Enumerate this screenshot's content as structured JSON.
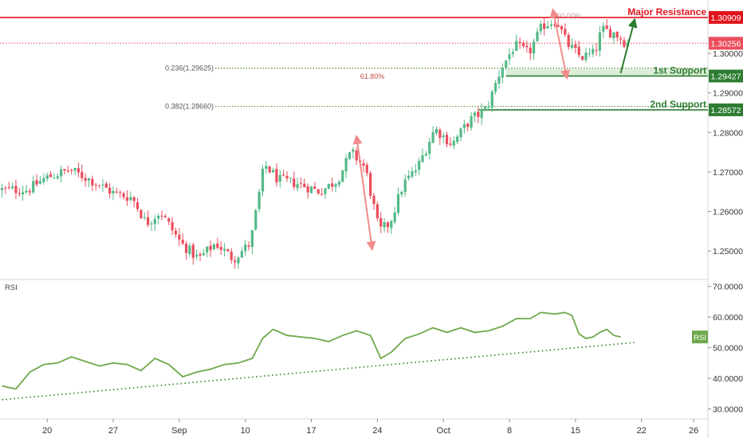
{
  "chart_data": [
    {
      "type": "candlestick",
      "title": "",
      "price_range": [
        1.243,
        1.3135
      ],
      "x_tick_labels": [
        {
          "label": "20",
          "bar": 13
        },
        {
          "label": "27",
          "bar": 32
        },
        {
          "label": "Sep",
          "bar": 51
        },
        {
          "label": "10",
          "bar": 70
        },
        {
          "label": "17",
          "bar": 89
        },
        {
          "label": "24",
          "bar": 108
        },
        {
          "label": "Oct",
          "bar": 127
        },
        {
          "label": "8",
          "bar": 146
        },
        {
          "label": "15",
          "bar": 165
        },
        {
          "label": "22",
          "bar": 184
        },
        {
          "label": "26",
          "bar": 199
        }
      ],
      "y_tick_labels": [
        "1.30000",
        "1.29000",
        "1.28000",
        "1.27000",
        "1.26000",
        "1.25000"
      ],
      "y_tick_values": [
        1.3,
        1.29,
        1.28,
        1.27,
        1.26,
        1.25
      ],
      "colors": {
        "up": "#53b987",
        "down": "#eb4d5c",
        "resistance": "#e0151d",
        "support": "#2e7d32",
        "fib": "#5a8f3c",
        "arrow_red": "#f28b8b"
      },
      "close_path": [
        [
          0,
          1.2655
        ],
        [
          8,
          1.2655
        ],
        [
          13,
          1.2685
        ],
        [
          20,
          1.2705
        ],
        [
          26,
          1.268
        ],
        [
          33,
          1.2645
        ],
        [
          38,
          1.2635
        ],
        [
          42,
          1.257
        ],
        [
          46,
          1.26
        ],
        [
          52,
          1.252
        ],
        [
          57,
          1.248
        ],
        [
          62,
          1.252
        ],
        [
          67,
          1.248
        ],
        [
          72,
          1.252
        ],
        [
          76,
          1.272
        ],
        [
          80,
          1.268
        ],
        [
          86,
          1.267
        ],
        [
          92,
          1.265
        ],
        [
          97,
          1.268
        ],
        [
          101,
          1.275
        ],
        [
          105,
          1.271
        ],
        [
          109,
          1.255
        ],
        [
          112,
          1.257
        ],
        [
          116,
          1.267
        ],
        [
          120,
          1.271
        ],
        [
          125,
          1.281
        ],
        [
          130,
          1.277
        ],
        [
          135,
          1.283
        ],
        [
          140,
          1.286
        ],
        [
          144,
          1.296
        ],
        [
          148,
          1.302
        ],
        [
          152,
          1.3
        ],
        [
          156,
          1.307
        ],
        [
          160,
          1.3085
        ],
        [
          163,
          1.3025
        ],
        [
          167,
          1.299
        ],
        [
          171,
          1.3
        ],
        [
          173,
          1.306
        ],
        [
          177,
          1.305
        ],
        [
          180,
          1.3026
        ]
      ],
      "levels": [
        {
          "id": "major-resistance",
          "label": "Major Resistance",
          "badge": "1.30909",
          "value": 1.30909
        },
        {
          "id": "current-price",
          "badge": "1.30256",
          "value": 1.30256
        },
        {
          "id": "first-support",
          "label": "1st Support",
          "badge": "1.29427",
          "value": 1.29427
        },
        {
          "id": "second-support",
          "label": "2nd Support",
          "badge": "1.28572",
          "value": 1.28572
        }
      ],
      "fib_levels": [
        {
          "label": "0.236(1.29625)",
          "value": 1.29625
        },
        {
          "label": "0.382(1.28660)",
          "value": 1.2866
        }
      ],
      "fib_markers": [
        {
          "label": "61.80%",
          "value": 1.2942
        },
        {
          "label": "100.00%",
          "value": 1.3095
        }
      ]
    },
    {
      "type": "line",
      "name": "RSI",
      "panel_label": "RSI",
      "badge": "RSI",
      "ylim": [
        27.0,
        72.0
      ],
      "y_tick_labels": [
        "70.0000",
        "60.0000",
        "50.0000",
        "40.0000",
        "30.0000"
      ],
      "y_tick_values": [
        70,
        60,
        50,
        40,
        30
      ],
      "color": "#6ea84a",
      "points": [
        [
          0,
          37.5
        ],
        [
          4,
          36.5
        ],
        [
          8,
          42.0
        ],
        [
          12,
          44.5
        ],
        [
          16,
          45.0
        ],
        [
          20,
          47.0
        ],
        [
          24,
          45.5
        ],
        [
          28,
          44.0
        ],
        [
          32,
          45.0
        ],
        [
          36,
          44.5
        ],
        [
          40,
          42.5
        ],
        [
          44,
          46.5
        ],
        [
          48,
          44.5
        ],
        [
          52,
          40.5
        ],
        [
          56,
          42.0
        ],
        [
          60,
          43.0
        ],
        [
          64,
          44.5
        ],
        [
          68,
          45.0
        ],
        [
          72,
          46.5
        ],
        [
          75,
          53.0
        ],
        [
          78,
          56.0
        ],
        [
          82,
          54.0
        ],
        [
          86,
          53.5
        ],
        [
          90,
          53.0
        ],
        [
          94,
          52.0
        ],
        [
          98,
          54.0
        ],
        [
          102,
          55.5
        ],
        [
          106,
          54.0
        ],
        [
          109,
          46.5
        ],
        [
          112,
          48.5
        ],
        [
          116,
          53.0
        ],
        [
          120,
          54.5
        ],
        [
          124,
          56.5
        ],
        [
          128,
          55.0
        ],
        [
          132,
          56.5
        ],
        [
          136,
          55.0
        ],
        [
          140,
          55.5
        ],
        [
          144,
          57.0
        ],
        [
          148,
          59.5
        ],
        [
          152,
          59.5
        ],
        [
          155,
          61.5
        ],
        [
          159,
          61.0
        ],
        [
          162,
          61.5
        ],
        [
          164,
          60.5
        ],
        [
          166,
          54.5
        ],
        [
          168,
          53.0
        ],
        [
          170,
          53.5
        ],
        [
          172,
          55.0
        ],
        [
          174,
          56.0
        ],
        [
          176,
          54.0
        ],
        [
          178,
          53.5
        ]
      ],
      "trendline": [
        [
          0,
          33.0
        ],
        [
          182,
          51.7
        ]
      ]
    }
  ],
  "x_axis_labels": [
    "20",
    "27",
    "Sep",
    "10",
    "17",
    "24",
    "Oct",
    "8",
    "15",
    "22",
    "26"
  ]
}
